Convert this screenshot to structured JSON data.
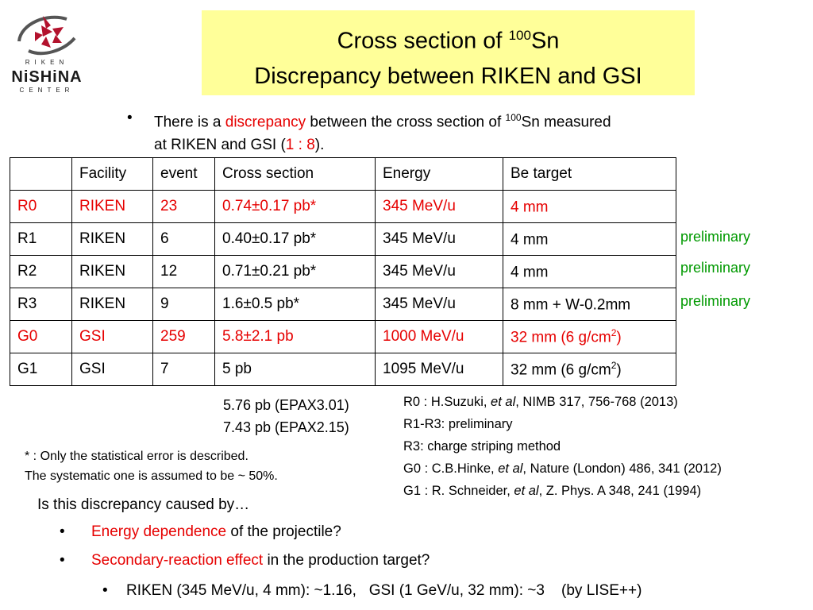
{
  "logo": {
    "top": "RIKEN",
    "name": "NiSHiNA",
    "bottom": "CENTER"
  },
  "title": {
    "line1_prefix": "Cross section of ",
    "line1_sup": "100",
    "line1_suffix": "Sn",
    "line2": "Discrepancy between RIKEN and GSI"
  },
  "intro": {
    "bullet": "•",
    "part1": "There is a ",
    "highlight": "discrepancy",
    "part2": " between the cross section of ",
    "sup": "100",
    "part3": "Sn measured",
    "part4": "at RIKEN and GSI (",
    "ratio": "1 : 8",
    "part5": ")."
  },
  "table": {
    "headers": [
      "",
      "Facility",
      "event",
      "Cross section",
      "Energy",
      "Be target"
    ],
    "rows": [
      {
        "id": "R0",
        "facility": "RIKEN",
        "event": "23",
        "cross": "0.74±0.17 pb*",
        "energy": "345 MeV/u",
        "target": "4 mm",
        "target_sup": "",
        "target_end": ""
      },
      {
        "id": "R1",
        "facility": "RIKEN",
        "event": "6",
        "cross": "0.40±0.17 pb*",
        "energy": "345 MeV/u",
        "target": "4 mm",
        "target_sup": "",
        "target_end": ""
      },
      {
        "id": "R2",
        "facility": "RIKEN",
        "event": "12",
        "cross": "0.71±0.21 pb*",
        "energy": "345 MeV/u",
        "target": "4 mm",
        "target_sup": "",
        "target_end": ""
      },
      {
        "id": "R3",
        "facility": "RIKEN",
        "event": "9",
        "cross": "1.6±0.5 pb*",
        "energy": "345 MeV/u",
        "target": "8 mm + W-0.2mm",
        "target_sup": "",
        "target_end": ""
      },
      {
        "id": "G0",
        "facility": "GSI",
        "event": "259",
        "cross": "5.8±2.1 pb",
        "energy": "1000 MeV/u",
        "target": "32 mm (6 g/cm",
        "target_sup": "2",
        "target_end": ")"
      },
      {
        "id": "G1",
        "facility": "GSI",
        "event": "7",
        "cross": "5 pb",
        "energy": "1095 MeV/u",
        "target": "32 mm (6 g/cm",
        "target_sup": "2",
        "target_end": ")"
      }
    ]
  },
  "preliminary": [
    "preliminary",
    "preliminary",
    "preliminary"
  ],
  "epax": [
    "5.76 pb (EPAX3.01)",
    "7.43 pb (EPAX2.15)"
  ],
  "refs": {
    "r0_a": "R0 : H.Suzuki, ",
    "r0_i": "et al",
    "r0_b": ", NIMB 317, 756-768 (2013)",
    "r1r3": "R1-R3: preliminary",
    "r3": "R3: charge striping method",
    "g0_a": "G0 : C.B.Hinke, ",
    "g0_i": "et al",
    "g0_b": ", Nature (London) 486, 341 (2012)",
    "g1_a": "G1 : R. Schneider, ",
    "g1_i": "et al",
    "g1_b": ", Z. Phys. A 348, 241 (1994)"
  },
  "note": [
    "* : Only the statistical error is described.",
    "The systematic one is assumed to be ~ 50%."
  ],
  "question": "Is this discrepancy caused by…",
  "bullets": [
    {
      "dot": "•",
      "red": "Energy dependence",
      "rest": " of  the projectile?"
    },
    {
      "dot": "•",
      "red": "Secondary-reaction effect",
      "rest": " in the production target?"
    }
  ],
  "sub_bullet": {
    "dot": "•",
    "text": "RIKEN (345 MeV/u, 4 mm): ~1.16,   GSI (1 GeV/u, 32 mm): ~3    (by LISE++)"
  }
}
